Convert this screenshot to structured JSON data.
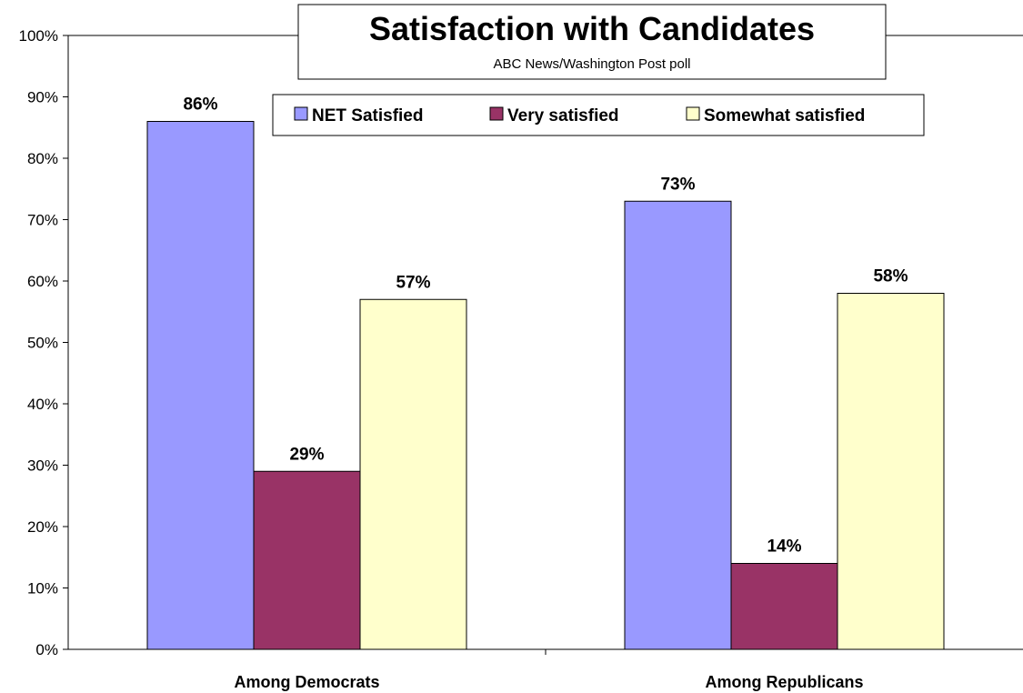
{
  "chart_data": {
    "type": "bar",
    "title": "Satisfaction with Candidates",
    "subtitle": "ABC News/Washington Post poll",
    "categories": [
      "Among Democrats",
      "Among Republicans"
    ],
    "series": [
      {
        "name": "NET Satisfied",
        "values": [
          86,
          73
        ],
        "color": "#9999ff"
      },
      {
        "name": "Very satisfied",
        "values": [
          29,
          14
        ],
        "color": "#993366"
      },
      {
        "name": "Somewhat satisfied",
        "values": [
          57,
          58
        ],
        "color": "#ffffcc"
      }
    ],
    "value_suffix": "%",
    "ylim": [
      0,
      100
    ],
    "yticks": [
      0,
      10,
      20,
      30,
      40,
      50,
      60,
      70,
      80,
      90,
      100
    ],
    "ytick_labels": [
      "0%",
      "10%",
      "20%",
      "30%",
      "40%",
      "50%",
      "60%",
      "70%",
      "80%",
      "90%",
      "100%"
    ],
    "grid": false,
    "legend_position": "top"
  }
}
